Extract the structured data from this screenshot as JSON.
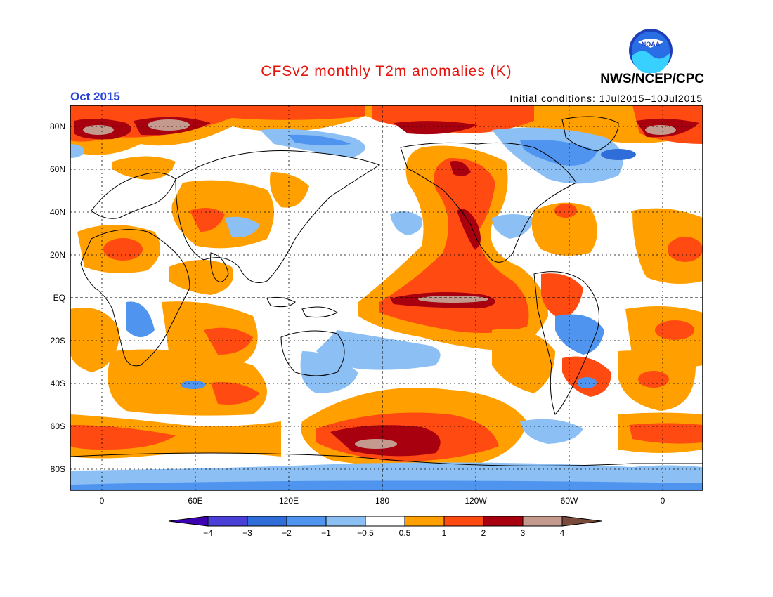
{
  "header": {
    "title": "CFSv2 monthly T2m anomalies (K)",
    "month": "Oct 2015",
    "initial_conditions": "Initial conditions: 1Jul2015–10Jul2015",
    "agency": "NWS/NCEP/CPC",
    "logo_text": "NOAA"
  },
  "axes": {
    "lat_labels": [
      "80N",
      "60N",
      "40N",
      "20N",
      "EQ",
      "20S",
      "40S",
      "60S",
      "80S"
    ],
    "lon_labels": [
      "0",
      "60E",
      "120E",
      "180",
      "120W",
      "60W",
      "0"
    ]
  },
  "colorbar": {
    "labels": [
      "−4",
      "−3",
      "−2",
      "−1",
      "−0.5",
      "0.5",
      "1",
      "2",
      "3",
      "4"
    ],
    "colors": [
      "#3c00b0",
      "#4a3fd6",
      "#2f6ed8",
      "#4f94ee",
      "#8cc0f5",
      "#ffffff",
      "#ff9f00",
      "#ff4a12",
      "#a8000e",
      "#c49a8e",
      "#7a4a3a"
    ]
  },
  "palette": {
    "ocean_white": "#ffffff",
    "warm_light": "#ff9f00",
    "warm_mid": "#ff4a12",
    "warm_dark": "#a8000e",
    "warm_extreme": "#c49a8e",
    "cool_light": "#8cc0f5",
    "cool_mid": "#4f94ee",
    "cool_dark": "#2f6ed8",
    "cool_extreme": "#4a3fd6"
  }
}
